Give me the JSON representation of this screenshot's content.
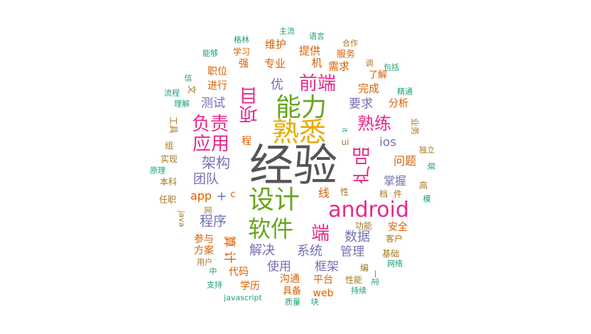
{
  "colors": {
    "gray": "#555555",
    "orange": "#d95f02",
    "purple": "#7570b3",
    "pink": "#e7298a",
    "green": "#66a61e",
    "gold": "#e6ab02",
    "brown": "#a6761d",
    "teal": "#1b9e77"
  },
  "words": [
    {
      "text": "经验",
      "color": "gray",
      "weight": "dominant"
    },
    {
      "text": "熟悉",
      "color": "gold",
      "weight": "large"
    },
    {
      "text": "能力",
      "color": "green",
      "weight": "large"
    },
    {
      "text": "设计",
      "color": "green",
      "weight": "large"
    },
    {
      "text": "软件",
      "color": "green",
      "weight": "large"
    },
    {
      "text": "android",
      "color": "pink",
      "weight": "large"
    },
    {
      "text": "负责",
      "color": "pink",
      "weight": "medium"
    },
    {
      "text": "应用",
      "color": "pink",
      "weight": "medium"
    },
    {
      "text": "前端",
      "color": "pink",
      "weight": "medium"
    },
    {
      "text": "熟练",
      "color": "pink",
      "weight": "medium"
    },
    {
      "text": "项目",
      "color": "pink",
      "weight": "medium"
    },
    {
      "text": "产品",
      "color": "pink",
      "weight": "medium"
    },
    {
      "text": "端",
      "color": "pink",
      "weight": "medium"
    },
    {
      "text": "架构",
      "color": "purple",
      "weight": "small"
    },
    {
      "text": "团队",
      "color": "purple",
      "weight": "small"
    },
    {
      "text": "程序",
      "color": "purple",
      "weight": "small"
    },
    {
      "text": "测试",
      "color": "purple",
      "weight": "small"
    },
    {
      "text": "优",
      "color": "purple",
      "weight": "small"
    },
    {
      "text": "要求",
      "color": "purple",
      "weight": "small"
    },
    {
      "text": "数据",
      "color": "purple",
      "weight": "small"
    },
    {
      "text": "解决",
      "color": "purple",
      "weight": "small"
    },
    {
      "text": "系统",
      "color": "purple",
      "weight": "small"
    },
    {
      "text": "使用",
      "color": "purple",
      "weight": "small"
    },
    {
      "text": "框架",
      "color": "purple",
      "weight": "small"
    },
    {
      "text": "管理",
      "color": "purple",
      "weight": "small"
    },
    {
      "text": "掌握",
      "color": "purple",
      "weight": "small"
    },
    {
      "text": "ios",
      "color": "purple",
      "weight": "small"
    },
    {
      "text": "问题",
      "color": "orange",
      "weight": "small"
    },
    {
      "text": "+",
      "color": "purple",
      "weight": "small"
    },
    {
      "text": "app",
      "color": "orange",
      "weight": "small"
    },
    {
      "text": "c",
      "color": "orange",
      "weight": "xsmall"
    },
    {
      "text": "线",
      "color": "orange",
      "weight": "small"
    },
    {
      "text": "算",
      "color": "orange",
      "weight": "small"
    },
    {
      "text": "计",
      "color": "orange",
      "weight": "small"
    },
    {
      "text": "程",
      "color": "orange",
      "weight": "xsmall"
    },
    {
      "text": "需求",
      "color": "orange",
      "weight": "xsmall"
    },
    {
      "text": "机",
      "color": "orange",
      "weight": "xsmall"
    },
    {
      "text": "提供",
      "color": "orange",
      "weight": "xsmall"
    },
    {
      "text": "维护",
      "color": "orange",
      "weight": "xsmall"
    },
    {
      "text": "专业",
      "color": "orange",
      "weight": "xsmall"
    },
    {
      "text": "强",
      "color": "orange",
      "weight": "xsmall"
    },
    {
      "text": "职位",
      "color": "orange",
      "weight": "xsmall"
    },
    {
      "text": "进行",
      "color": "orange",
      "weight": "xsmall"
    },
    {
      "text": "完成",
      "color": "orange",
      "weight": "xsmall"
    },
    {
      "text": "分析",
      "color": "orange",
      "weight": "xsmall"
    },
    {
      "text": "参与",
      "color": "orange",
      "weight": "xsmall"
    },
    {
      "text": "方案",
      "color": "orange",
      "weight": "xsmall"
    },
    {
      "text": "代码",
      "color": "orange",
      "weight": "xsmall"
    },
    {
      "text": "沟通",
      "color": "orange",
      "weight": "xsmall"
    },
    {
      "text": "学历",
      "color": "orange",
      "weight": "xsmall"
    },
    {
      "text": "具备",
      "color": "orange",
      "weight": "xsmall"
    },
    {
      "text": "平台",
      "color": "orange",
      "weight": "xsmall"
    },
    {
      "text": "web",
      "color": "orange",
      "weight": "xsmall"
    },
    {
      "text": "安全",
      "color": "orange",
      "weight": "xsmall"
    },
    {
      "text": "学习",
      "color": "orange",
      "weight": "tiny"
    },
    {
      "text": "服务",
      "color": "orange",
      "weight": "tiny"
    },
    {
      "text": "了解",
      "color": "orange",
      "weight": "tiny"
    },
    {
      "text": "实现",
      "color": "brown",
      "weight": "tiny"
    },
    {
      "text": "本科",
      "color": "brown",
      "weight": "tiny"
    },
    {
      "text": "任职",
      "color": "brown",
      "weight": "tiny"
    },
    {
      "text": "工具",
      "color": "brown",
      "weight": "tiny"
    },
    {
      "text": "文",
      "color": "brown",
      "weight": "tiny"
    },
    {
      "text": "业务",
      "color": "brown",
      "weight": "tiny"
    },
    {
      "text": "档",
      "color": "brown",
      "weight": "tiny"
    },
    {
      "text": "件",
      "color": "brown",
      "weight": "tiny"
    },
    {
      "text": "功能",
      "color": "brown",
      "weight": "tiny"
    },
    {
      "text": "客户",
      "color": "brown",
      "weight": "tiny"
    },
    {
      "text": "基础",
      "color": "brown",
      "weight": "tiny"
    },
    {
      "text": "编",
      "color": "brown",
      "weight": "tiny"
    },
    {
      "text": "性能",
      "color": "brown",
      "weight": "tiny"
    },
    {
      "text": "性",
      "color": "brown",
      "weight": "tiny"
    },
    {
      "text": "高",
      "color": "brown",
      "weight": "tiny"
    },
    {
      "text": "用户",
      "color": "brown",
      "weight": "tiny"
    },
    {
      "text": "网",
      "color": "brown",
      "weight": "tiny"
    },
    {
      "text": "java",
      "color": "brown",
      "weight": "tiny"
    },
    {
      "text": "组",
      "color": "brown",
      "weight": "tiny"
    },
    {
      "text": "合作",
      "color": "brown",
      "weight": "tiny"
    },
    {
      "text": "调",
      "color": "brown",
      "weight": "tiny"
    },
    {
      "text": "独立",
      "color": "brown",
      "weight": "tiny"
    },
    {
      "text": "ui",
      "color": "brown",
      "weight": "tiny"
    },
    {
      "text": "主流",
      "color": "teal",
      "weight": "tiny"
    },
    {
      "text": "语言",
      "color": "teal",
      "weight": "tiny"
    },
    {
      "text": "格林",
      "color": "teal",
      "weight": "tiny"
    },
    {
      "text": "能够",
      "color": "teal",
      "weight": "tiny"
    },
    {
      "text": "包括",
      "color": "teal",
      "weight": "tiny"
    },
    {
      "text": "信",
      "color": "teal",
      "weight": "tiny"
    },
    {
      "text": "流程",
      "color": "teal",
      "weight": "tiny"
    },
    {
      "text": "理解",
      "color": "teal",
      "weight": "tiny"
    },
    {
      "text": "精通",
      "color": "teal",
      "weight": "tiny"
    },
    {
      "text": "原理",
      "color": "teal",
      "weight": "tiny"
    },
    {
      "text": "联",
      "color": "teal",
      "weight": "tiny"
    },
    {
      "text": "模",
      "color": "teal",
      "weight": "tiny"
    },
    {
      "text": "it",
      "color": "teal",
      "weight": "tiny"
    },
    {
      "text": "中",
      "color": "teal",
      "weight": "tiny"
    },
    {
      "text": "支持",
      "color": "teal",
      "weight": "tiny"
    },
    {
      "text": "网络",
      "color": "teal",
      "weight": "tiny"
    },
    {
      "text": "一定",
      "color": "teal",
      "weight": "tiny"
    },
    {
      "text": "持续",
      "color": "teal",
      "weight": "tiny"
    },
    {
      "text": "javascript",
      "color": "teal",
      "weight": "tiny"
    },
    {
      "text": "质量",
      "color": "teal",
      "weight": "tiny"
    },
    {
      "text": "块",
      "color": "teal",
      "weight": "tiny"
    }
  ]
}
